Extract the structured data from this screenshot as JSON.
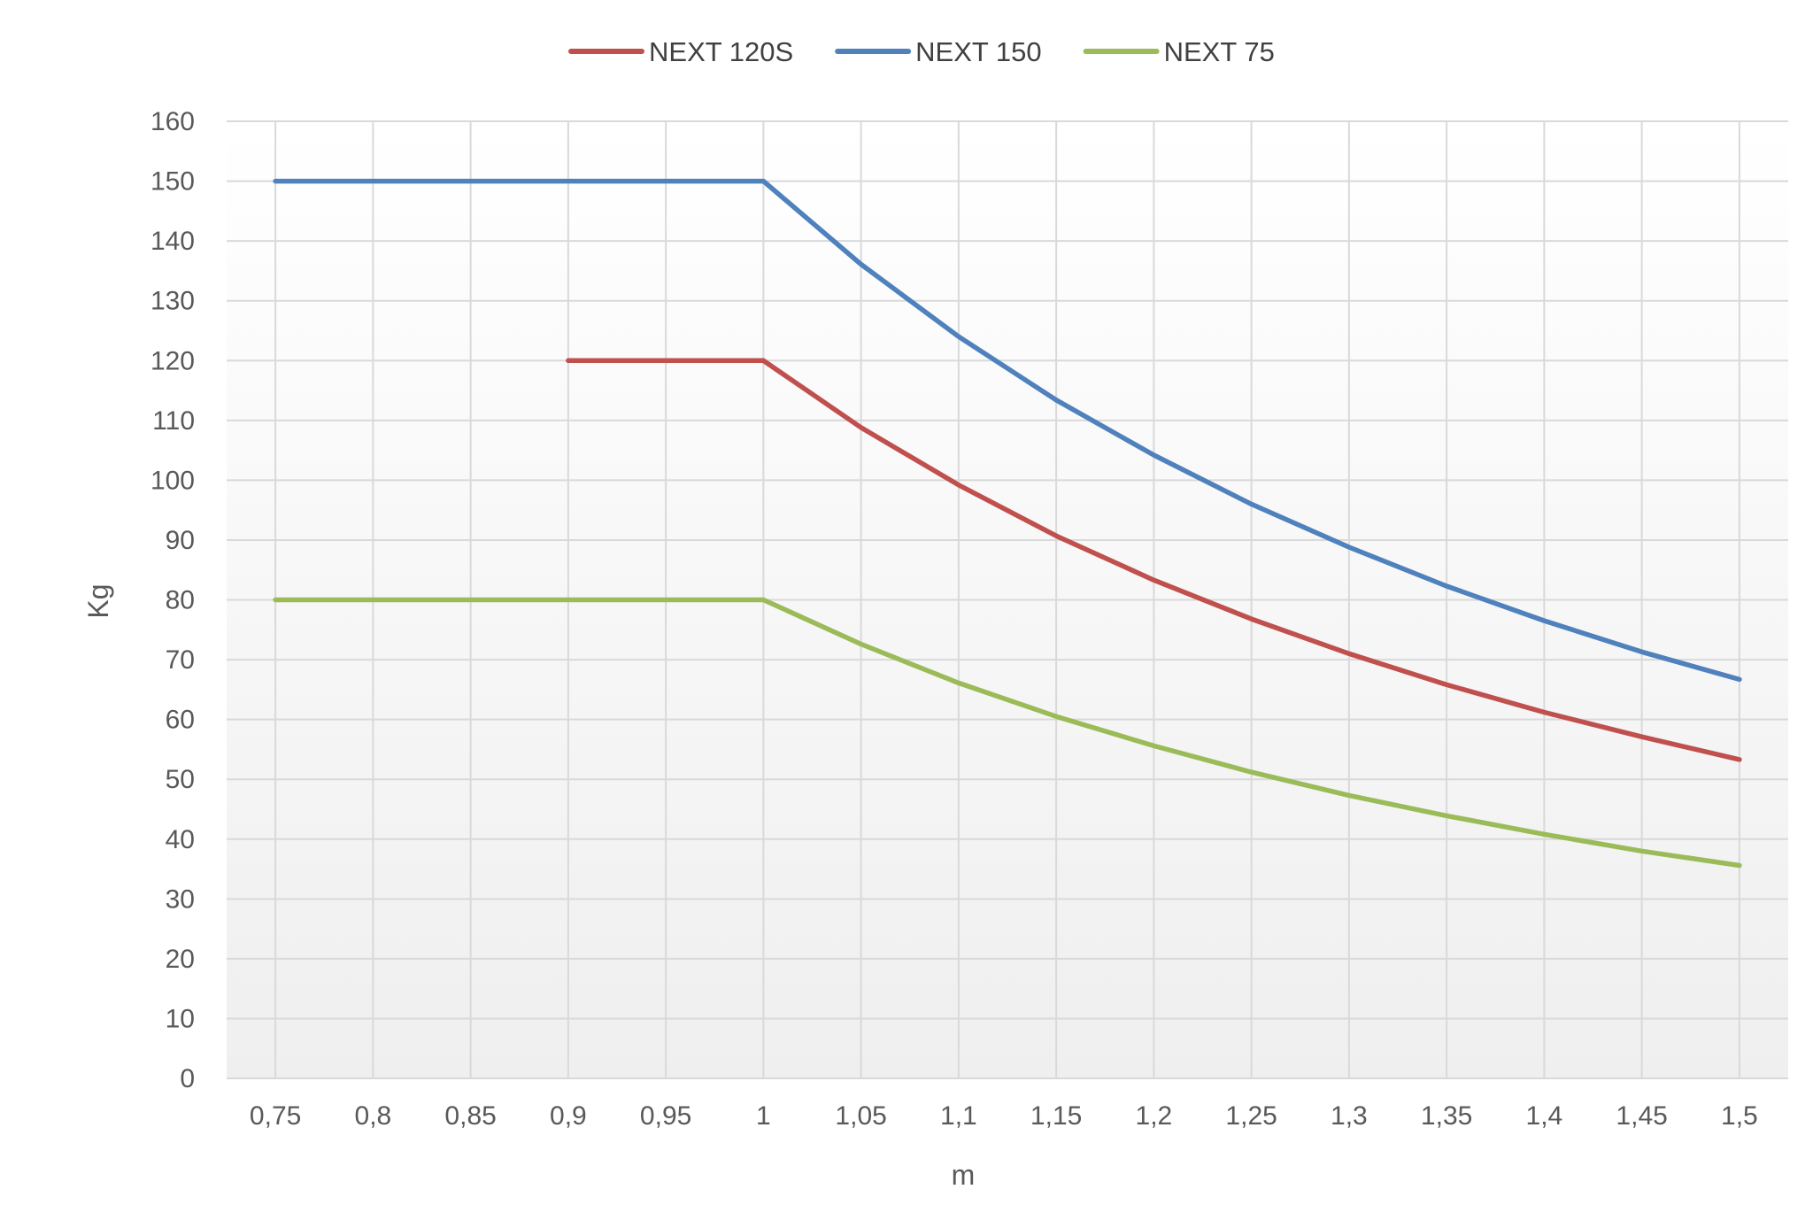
{
  "chart_data": {
    "type": "line",
    "title": "",
    "xlabel": "m",
    "ylabel": "Kg",
    "x": [
      "0,75",
      "0,8",
      "0,85",
      "0,9",
      "0,95",
      "1",
      "1,05",
      "1,1",
      "1,15",
      "1,2",
      "1,25",
      "1,3",
      "1,35",
      "1,4",
      "1,45",
      "1,5"
    ],
    "ylim": [
      0,
      160
    ],
    "yticks": [
      "0",
      "10",
      "20",
      "30",
      "40",
      "50",
      "60",
      "70",
      "80",
      "90",
      "100",
      "110",
      "120",
      "130",
      "140",
      "150",
      "160"
    ],
    "grid": true,
    "legend_position": "top",
    "series": [
      {
        "name": "NEXT 120S",
        "color": "#C0504D",
        "values": [
          null,
          null,
          null,
          120,
          120,
          120,
          108.8,
          99.2,
          90.7,
          83.3,
          76.8,
          71.0,
          65.8,
          61.2,
          57.1,
          53.3
        ]
      },
      {
        "name": "NEXT 150",
        "color": "#4F81BD",
        "values": [
          150,
          150,
          150,
          150,
          150,
          150,
          136.1,
          124.0,
          113.4,
          104.2,
          96.0,
          88.8,
          82.3,
          76.5,
          71.3,
          66.7
        ]
      },
      {
        "name": "NEXT 75",
        "color": "#9BBB59",
        "values": [
          80,
          80,
          80,
          80,
          80,
          80,
          72.6,
          66.1,
          60.5,
          55.6,
          51.2,
          47.3,
          43.9,
          40.8,
          38.0,
          35.6
        ]
      }
    ]
  }
}
